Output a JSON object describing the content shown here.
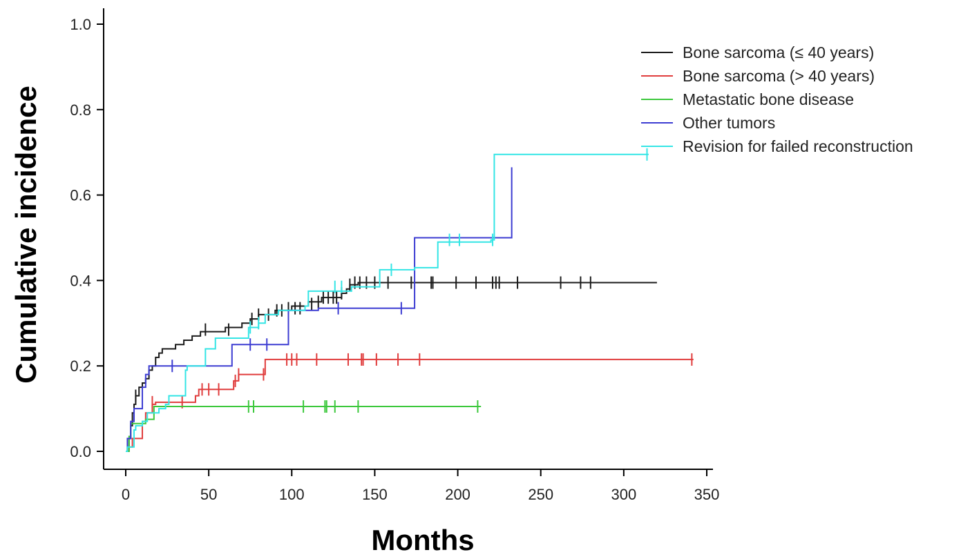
{
  "chart_data": {
    "type": "line",
    "title": "",
    "xlabel": "Months",
    "ylabel": "Cumulative incidence",
    "xlim": [
      0,
      350
    ],
    "ylim": [
      0,
      1.0
    ],
    "x_ticks": [
      0,
      50,
      100,
      150,
      200,
      250,
      300,
      350
    ],
    "x_tick_labels": [
      "0",
      "50",
      "100",
      "150",
      "200",
      "250",
      "300",
      "350"
    ],
    "y_ticks": [
      0.0,
      0.2,
      0.4,
      0.6,
      0.8,
      1.0
    ],
    "y_tick_labels": [
      "0.0",
      "0.2",
      "0.4",
      "0.6",
      "0.8",
      "1.0"
    ],
    "grid": false,
    "legend_position": "top-right",
    "series": [
      {
        "name": "Bone sarcoma (≤ 40 years)",
        "color": "#1a1a1a",
        "steps": [
          [
            0,
            0
          ],
          [
            1,
            0.01
          ],
          [
            2,
            0.03
          ],
          [
            3,
            0.06
          ],
          [
            4,
            0.09
          ],
          [
            5,
            0.11
          ],
          [
            6,
            0.13
          ],
          [
            8,
            0.15
          ],
          [
            10,
            0.16
          ],
          [
            12,
            0.17
          ],
          [
            14,
            0.19
          ],
          [
            16,
            0.2
          ],
          [
            18,
            0.22
          ],
          [
            20,
            0.23
          ],
          [
            22,
            0.24
          ],
          [
            30,
            0.25
          ],
          [
            35,
            0.26
          ],
          [
            40,
            0.27
          ],
          [
            45,
            0.28
          ],
          [
            60,
            0.29
          ],
          [
            70,
            0.3
          ],
          [
            75,
            0.31
          ],
          [
            80,
            0.32
          ],
          [
            90,
            0.33
          ],
          [
            100,
            0.34
          ],
          [
            110,
            0.35
          ],
          [
            118,
            0.36
          ],
          [
            130,
            0.37
          ],
          [
            133,
            0.38
          ],
          [
            135,
            0.39
          ],
          [
            140,
            0.395
          ],
          [
            320,
            0.395
          ]
        ],
        "censors": [
          [
            6,
            0.13
          ],
          [
            48,
            0.285
          ],
          [
            62,
            0.285
          ],
          [
            76,
            0.31
          ],
          [
            80,
            0.32
          ],
          [
            86,
            0.32
          ],
          [
            91,
            0.33
          ],
          [
            94,
            0.33
          ],
          [
            98,
            0.335
          ],
          [
            102,
            0.335
          ],
          [
            105,
            0.335
          ],
          [
            112,
            0.345
          ],
          [
            116,
            0.35
          ],
          [
            119,
            0.36
          ],
          [
            122,
            0.36
          ],
          [
            125,
            0.36
          ],
          [
            127,
            0.36
          ],
          [
            130,
            0.37
          ],
          [
            135,
            0.39
          ],
          [
            138,
            0.395
          ],
          [
            141,
            0.395
          ],
          [
            145,
            0.395
          ],
          [
            150,
            0.395
          ],
          [
            158,
            0.395
          ],
          [
            172,
            0.395
          ],
          [
            184,
            0.395
          ],
          [
            185,
            0.395
          ],
          [
            199,
            0.395
          ],
          [
            211,
            0.395
          ],
          [
            221,
            0.395
          ],
          [
            223,
            0.395
          ],
          [
            225,
            0.395
          ],
          [
            236,
            0.395
          ],
          [
            262,
            0.395
          ],
          [
            274,
            0.395
          ],
          [
            280,
            0.395
          ]
        ]
      },
      {
        "name": "Bone sarcoma (> 40 years)",
        "color": "#e03c3c",
        "steps": [
          [
            0,
            0
          ],
          [
            2,
            0.01
          ],
          [
            4,
            0.03
          ],
          [
            10,
            0.07
          ],
          [
            12,
            0.09
          ],
          [
            16,
            0.11
          ],
          [
            18,
            0.115
          ],
          [
            42,
            0.13
          ],
          [
            44,
            0.145
          ],
          [
            65,
            0.165
          ],
          [
            68,
            0.18
          ],
          [
            84,
            0.215
          ],
          [
            342,
            0.215
          ]
        ],
        "censors": [
          [
            16,
            0.115
          ],
          [
            34,
            0.115
          ],
          [
            46,
            0.145
          ],
          [
            50,
            0.145
          ],
          [
            56,
            0.145
          ],
          [
            66,
            0.165
          ],
          [
            68,
            0.18
          ],
          [
            83,
            0.18
          ],
          [
            97,
            0.215
          ],
          [
            100,
            0.215
          ],
          [
            103,
            0.215
          ],
          [
            115,
            0.215
          ],
          [
            134,
            0.215
          ],
          [
            142,
            0.215
          ],
          [
            143,
            0.215
          ],
          [
            151,
            0.215
          ],
          [
            164,
            0.215
          ],
          [
            177,
            0.215
          ],
          [
            341,
            0.215
          ]
        ]
      },
      {
        "name": "Metastatic bone disease",
        "color": "#3cc83c",
        "steps": [
          [
            0,
            0
          ],
          [
            2,
            0.035
          ],
          [
            3,
            0.065
          ],
          [
            12,
            0.075
          ],
          [
            17,
            0.105
          ],
          [
            214,
            0.105
          ]
        ],
        "censors": [
          [
            74,
            0.105
          ],
          [
            77,
            0.105
          ],
          [
            107,
            0.105
          ],
          [
            120,
            0.105
          ],
          [
            121,
            0.105
          ],
          [
            126,
            0.105
          ],
          [
            140,
            0.105
          ],
          [
            212,
            0.105
          ]
        ]
      },
      {
        "name": "Other tumors",
        "color": "#3c3cd2",
        "steps": [
          [
            0,
            0
          ],
          [
            1,
            0.03
          ],
          [
            3,
            0.07
          ],
          [
            5,
            0.1
          ],
          [
            10,
            0.15
          ],
          [
            12,
            0.18
          ],
          [
            14,
            0.2
          ],
          [
            48,
            0.2
          ],
          [
            64,
            0.25
          ],
          [
            97,
            0.25
          ],
          [
            98,
            0.33
          ],
          [
            116,
            0.335
          ],
          [
            173,
            0.335
          ],
          [
            174,
            0.5
          ],
          [
            232,
            0.5
          ],
          [
            232.5,
            0.665
          ]
        ],
        "censors": [
          [
            28,
            0.2
          ],
          [
            75,
            0.25
          ],
          [
            85,
            0.25
          ],
          [
            128,
            0.335
          ],
          [
            166,
            0.335
          ]
        ]
      },
      {
        "name": "Revision for failed reconstruction",
        "color": "#33e5e5",
        "steps": [
          [
            0,
            0
          ],
          [
            1,
            0.01
          ],
          [
            5,
            0.05
          ],
          [
            6,
            0.06
          ],
          [
            10,
            0.07
          ],
          [
            13,
            0.09
          ],
          [
            20,
            0.1
          ],
          [
            24,
            0.11
          ],
          [
            26,
            0.13
          ],
          [
            36,
            0.19
          ],
          [
            37,
            0.2
          ],
          [
            48,
            0.24
          ],
          [
            54,
            0.265
          ],
          [
            74,
            0.29
          ],
          [
            80,
            0.3
          ],
          [
            84,
            0.32
          ],
          [
            92,
            0.33
          ],
          [
            108,
            0.34
          ],
          [
            110,
            0.375
          ],
          [
            136,
            0.385
          ],
          [
            153,
            0.425
          ],
          [
            173,
            0.425
          ],
          [
            174,
            0.43
          ],
          [
            188,
            0.49
          ],
          [
            220,
            0.495
          ],
          [
            222,
            0.695
          ],
          [
            315,
            0.695
          ]
        ],
        "censors": [
          [
            75,
            0.29
          ],
          [
            80,
            0.3
          ],
          [
            126,
            0.385
          ],
          [
            130,
            0.385
          ],
          [
            160,
            0.425
          ],
          [
            195,
            0.495
          ],
          [
            201,
            0.495
          ],
          [
            221,
            0.495
          ],
          [
            314,
            0.695
          ]
        ]
      }
    ]
  }
}
